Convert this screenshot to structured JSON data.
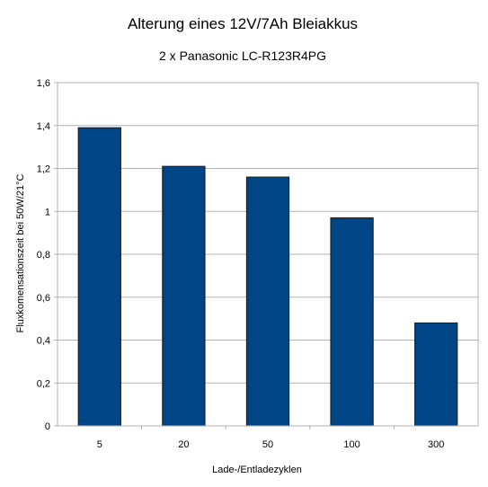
{
  "chart_data": {
    "type": "bar",
    "title": "Alterung eines 12V/7Ah Bleiakkus",
    "subtitle": "2 x Panasonic LC-R123R4PG",
    "xlabel": "Lade-/Entladezyklen",
    "ylabel": "Fluxkomensationszeit bei 50W/21°C",
    "categories": [
      "5",
      "20",
      "50",
      "100",
      "300"
    ],
    "values": [
      1.39,
      1.21,
      1.16,
      0.97,
      0.48
    ],
    "ylim": [
      0,
      1.6
    ],
    "yticks": [
      "0",
      "0,2",
      "0,4",
      "0,6",
      "0,8",
      "1",
      "1,2",
      "1,4",
      "1,6"
    ],
    "grid": true,
    "bar_color": "#004586"
  }
}
